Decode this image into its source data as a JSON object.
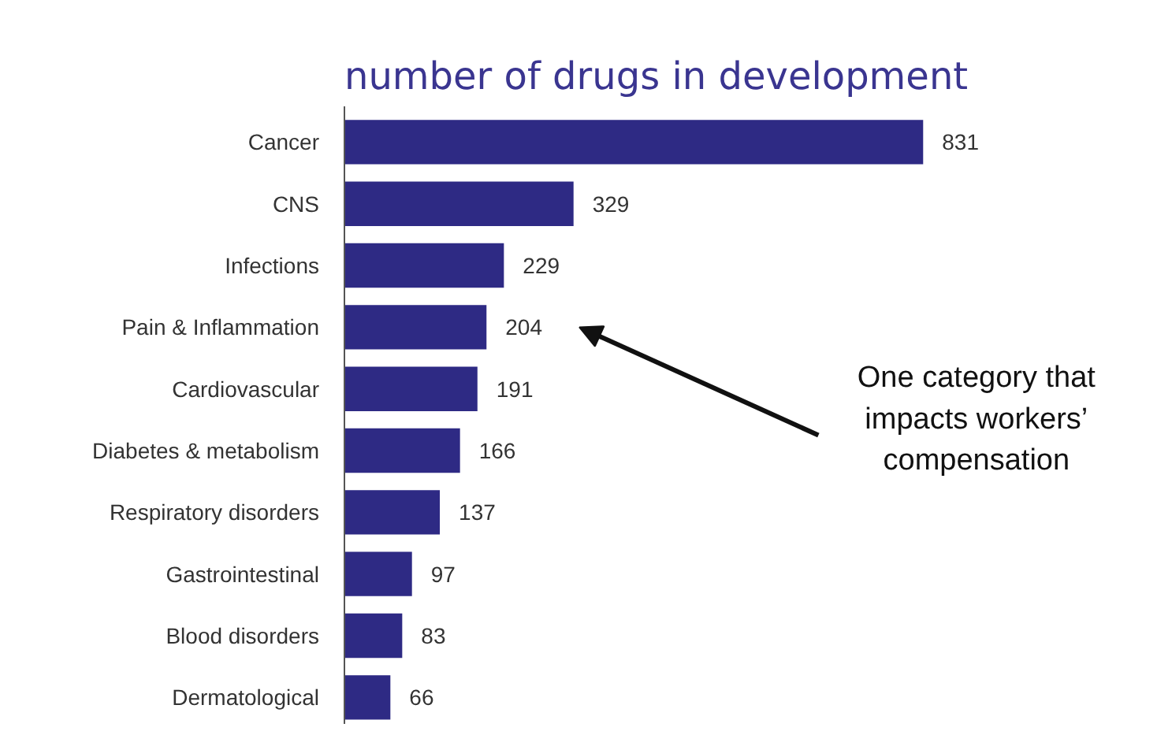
{
  "chart_data": {
    "type": "bar",
    "orientation": "horizontal",
    "title": "number of drugs in development",
    "categories": [
      "Cancer",
      "CNS",
      "Infections",
      "Pain & Inflammation",
      "Cardiovascular",
      "Diabetes & metabolism",
      "Respiratory disorders",
      "Gastrointestinal",
      "Blood disorders",
      "Dermatological"
    ],
    "values": [
      831,
      329,
      229,
      204,
      191,
      166,
      137,
      97,
      83,
      66
    ],
    "color": "#2e2a84",
    "data_labels": true,
    "grid": false,
    "tick_labels": "y",
    "annotations": [
      "One category that\nimpacts workers’\ncompensation"
    ]
  }
}
